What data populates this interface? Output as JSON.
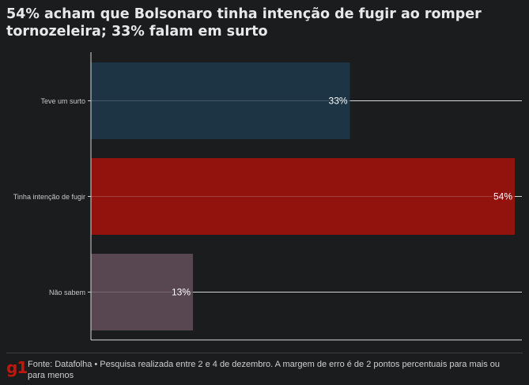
{
  "title": "54% acham que Bolsonaro tinha intenção de fugir ao romper tornozeleira; 33% falam em surto",
  "footer": {
    "logo": "g1",
    "source": "Fonte: Datafolha • Pesquisa realizada entre 2 e 4 de dezembro. A margem de erro é de 2 pontos percentuais para mais ou para menos"
  },
  "colors": {
    "background": "#1b1c1e",
    "brand": "#c4170c"
  },
  "chart_data": {
    "type": "bar",
    "orientation": "horizontal",
    "title": "54% acham que Bolsonaro tinha intenção de fugir ao romper tornozeleira; 33% falam em surto",
    "categories": [
      "Teve um surto",
      "Tinha intenção de fugir",
      "Não sabem"
    ],
    "values": [
      33,
      54,
      13
    ],
    "labels": [
      "33%",
      "54%",
      "13%"
    ],
    "colors": [
      "#1d3444",
      "#92120e",
      "#584751"
    ],
    "xlim": [
      0,
      54
    ],
    "unit": "%",
    "xlabel": "",
    "ylabel": "",
    "grid": false,
    "legend": "none"
  }
}
